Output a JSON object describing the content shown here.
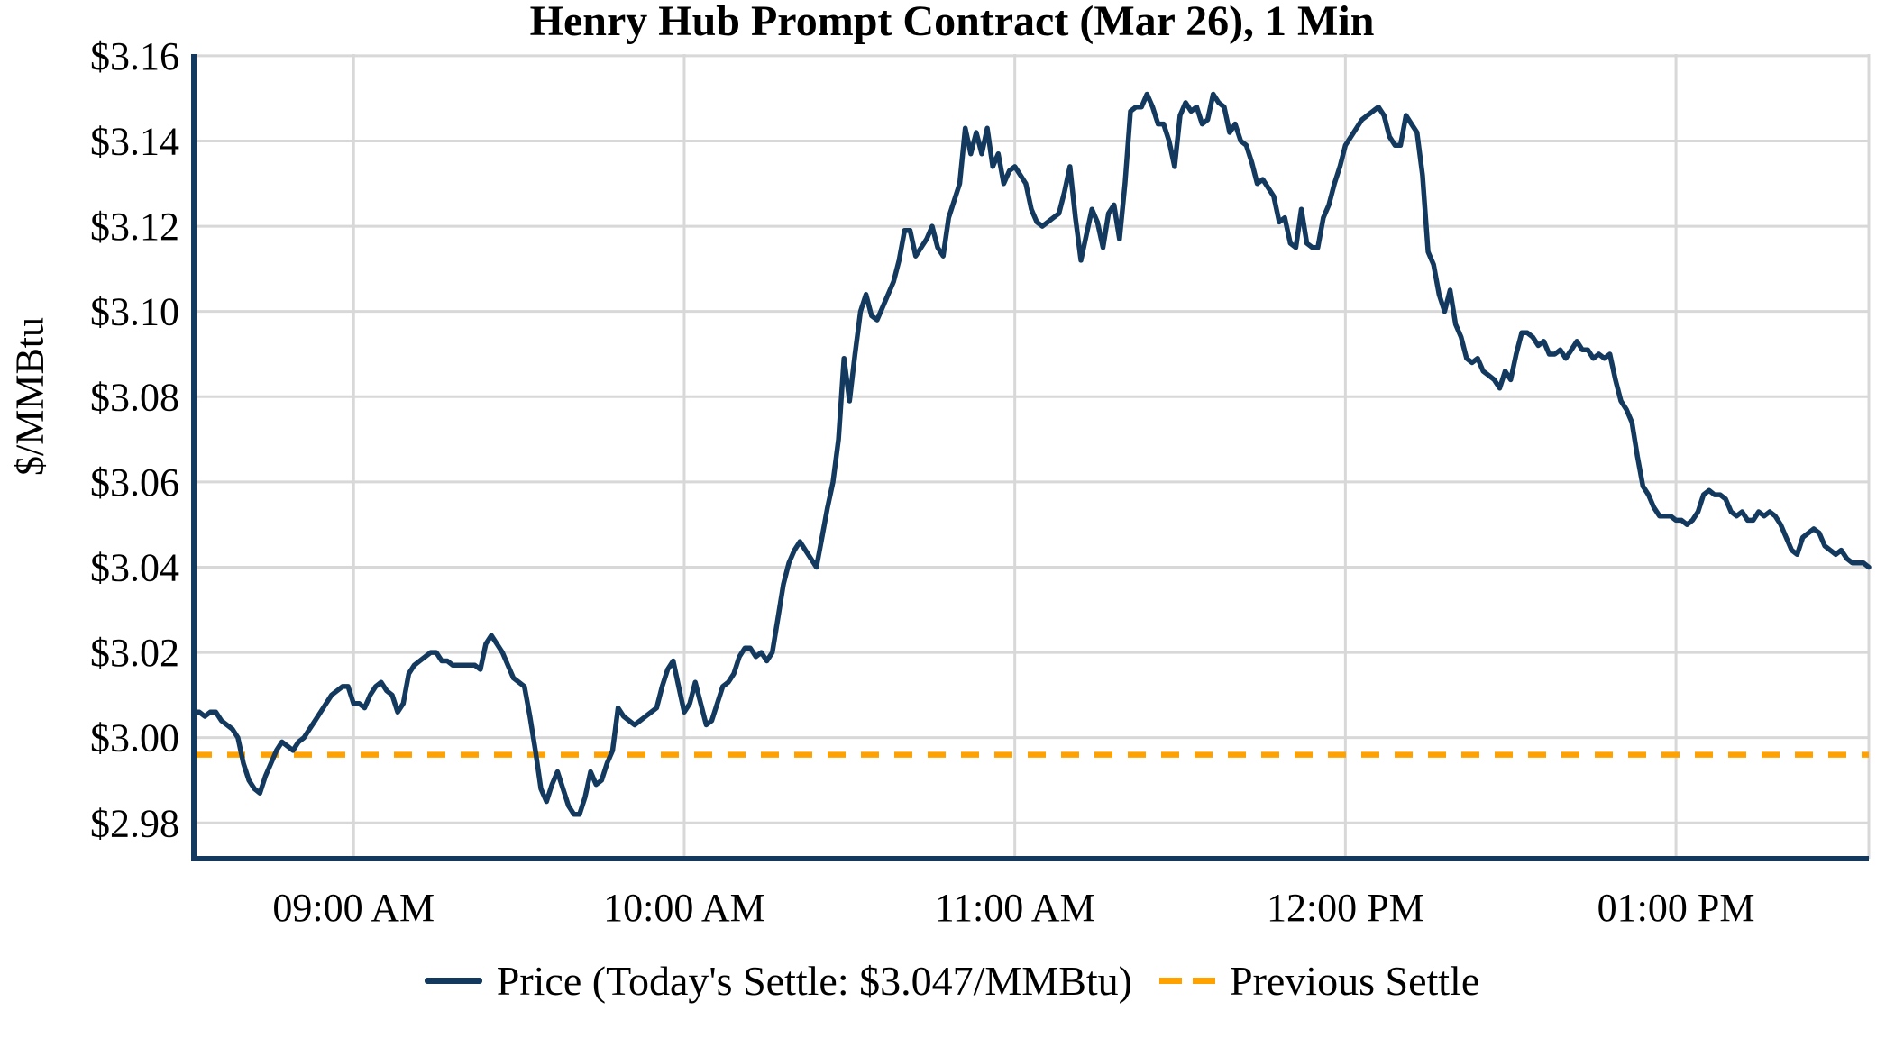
{
  "page_title": "Henry Hub Prompt Contract (Mar 26), 1 Min",
  "chart_data": {
    "type": "line",
    "title": "Henry Hub Prompt Contract (Mar 26), 1 Min",
    "xlabel": "",
    "ylabel": "$/MMBtu",
    "grid": true,
    "legend_position": "bottom-center",
    "ylim": [
      2.9716,
      3.1604
    ],
    "x_start_time": "08:31 AM",
    "x_end_time": "01:35 PM",
    "interval_minutes": 1,
    "todays_settle": 3.047,
    "previous_settle": 2.996,
    "yticks": [
      {
        "label": "$2.98",
        "value": 2.98
      },
      {
        "label": "$3.00",
        "value": 3.0
      },
      {
        "label": "$3.02",
        "value": 3.02
      },
      {
        "label": "$3.04",
        "value": 3.04
      },
      {
        "label": "$3.06",
        "value": 3.06
      },
      {
        "label": "$3.08",
        "value": 3.08
      },
      {
        "label": "$3.10",
        "value": 3.1
      },
      {
        "label": "$3.12",
        "value": 3.12
      },
      {
        "label": "$3.14",
        "value": 3.14
      },
      {
        "label": "$3.16",
        "value": 3.16
      }
    ],
    "xticks": [
      {
        "label": "09:00 AM",
        "index": 29
      },
      {
        "label": "10:00 AM",
        "index": 89
      },
      {
        "label": "11:00 AM",
        "index": 149
      },
      {
        "label": "12:00 PM",
        "index": 209
      },
      {
        "label": "01:00 PM",
        "index": 269
      }
    ],
    "legend": [
      {
        "label": "Price (Today's Settle: $3.047/MMBtu)",
        "color": "#133a5e",
        "style": "solid"
      },
      {
        "label": "Previous Settle",
        "color": "#ffa200",
        "style": "dashed"
      }
    ],
    "series": [
      {
        "name": "Price",
        "color": "#133a5e",
        "values": [
          3.006,
          3.006,
          3.005,
          3.006,
          3.006,
          3.004,
          3.003,
          3.002,
          3.0,
          2.994,
          2.99,
          2.988,
          2.987,
          2.991,
          2.994,
          2.997,
          2.999,
          2.998,
          2.997,
          2.999,
          3.0,
          3.002,
          3.004,
          3.006,
          3.008,
          3.01,
          3.011,
          3.012,
          3.012,
          3.008,
          3.008,
          3.007,
          3.01,
          3.012,
          3.013,
          3.011,
          3.01,
          3.006,
          3.008,
          3.015,
          3.017,
          3.018,
          3.019,
          3.02,
          3.02,
          3.018,
          3.018,
          3.017,
          3.017,
          3.017,
          3.017,
          3.017,
          3.016,
          3.022,
          3.024,
          3.022,
          3.02,
          3.017,
          3.014,
          3.013,
          3.012,
          3.005,
          2.997,
          2.988,
          2.985,
          2.989,
          2.992,
          2.988,
          2.984,
          2.982,
          2.982,
          2.986,
          2.992,
          2.989,
          2.99,
          2.994,
          2.997,
          3.007,
          3.005,
          3.004,
          3.003,
          3.004,
          3.005,
          3.006,
          3.007,
          3.012,
          3.016,
          3.018,
          3.012,
          3.006,
          3.008,
          3.013,
          3.008,
          3.003,
          3.004,
          3.008,
          3.012,
          3.013,
          3.015,
          3.019,
          3.021,
          3.021,
          3.019,
          3.02,
          3.018,
          3.02,
          3.028,
          3.036,
          3.041,
          3.044,
          3.046,
          3.044,
          3.042,
          3.04,
          3.047,
          3.054,
          3.06,
          3.07,
          3.089,
          3.079,
          3.09,
          3.1,
          3.104,
          3.099,
          3.098,
          3.101,
          3.104,
          3.107,
          3.112,
          3.119,
          3.119,
          3.113,
          3.115,
          3.117,
          3.12,
          3.115,
          3.113,
          3.122,
          3.126,
          3.13,
          3.143,
          3.137,
          3.142,
          3.137,
          3.143,
          3.134,
          3.137,
          3.13,
          3.133,
          3.134,
          3.132,
          3.13,
          3.124,
          3.121,
          3.12,
          3.121,
          3.122,
          3.123,
          3.128,
          3.134,
          3.122,
          3.112,
          3.118,
          3.124,
          3.121,
          3.115,
          3.123,
          3.125,
          3.117,
          3.13,
          3.147,
          3.148,
          3.148,
          3.151,
          3.148,
          3.144,
          3.144,
          3.14,
          3.134,
          3.146,
          3.149,
          3.147,
          3.148,
          3.144,
          3.145,
          3.151,
          3.149,
          3.148,
          3.142,
          3.144,
          3.14,
          3.139,
          3.135,
          3.13,
          3.131,
          3.129,
          3.127,
          3.121,
          3.122,
          3.116,
          3.115,
          3.124,
          3.116,
          3.115,
          3.115,
          3.122,
          3.125,
          3.13,
          3.134,
          3.139,
          3.141,
          3.143,
          3.145,
          3.146,
          3.147,
          3.148,
          3.146,
          3.141,
          3.139,
          3.139,
          3.146,
          3.144,
          3.142,
          3.132,
          3.114,
          3.111,
          3.104,
          3.1,
          3.105,
          3.097,
          3.094,
          3.089,
          3.088,
          3.089,
          3.086,
          3.085,
          3.084,
          3.082,
          3.086,
          3.084,
          3.09,
          3.095,
          3.095,
          3.094,
          3.092,
          3.093,
          3.09,
          3.09,
          3.091,
          3.089,
          3.091,
          3.093,
          3.091,
          3.091,
          3.089,
          3.09,
          3.089,
          3.09,
          3.084,
          3.079,
          3.077,
          3.074,
          3.066,
          3.059,
          3.057,
          3.054,
          3.052,
          3.052,
          3.052,
          3.051,
          3.051,
          3.05,
          3.051,
          3.053,
          3.057,
          3.058,
          3.057,
          3.057,
          3.056,
          3.053,
          3.052,
          3.053,
          3.051,
          3.051,
          3.053,
          3.052,
          3.053,
          3.052,
          3.05,
          3.047,
          3.044,
          3.043,
          3.047,
          3.048,
          3.049,
          3.048,
          3.045,
          3.044,
          3.043,
          3.044,
          3.042,
          3.041,
          3.041,
          3.041,
          3.04
        ]
      }
    ],
    "colors": {
      "price_line": "#133a5e",
      "previous_settle_line": "#ffa200",
      "gridline": "#d8d8d8",
      "axis": "#133a5e",
      "text": "#000000",
      "background": "#ffffff"
    }
  }
}
